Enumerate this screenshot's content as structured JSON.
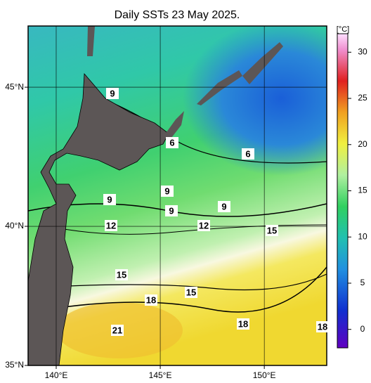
{
  "title": "Daily SSTs 23 May 2025.",
  "map": {
    "xlim": [
      138.65,
      153
    ],
    "ylim": [
      35,
      47.2
    ],
    "xticks": [
      {
        "value": 140,
        "label": "140°E"
      },
      {
        "value": 145,
        "label": "145°E"
      },
      {
        "value": 150,
        "label": "150°E"
      }
    ],
    "yticks": [
      {
        "value": 35,
        "label": "35°N"
      },
      {
        "value": 40,
        "label": "40°N"
      },
      {
        "value": 45,
        "label": "45°N"
      }
    ],
    "contour_labels": [
      "9",
      "6",
      "6",
      "9",
      "9",
      "9",
      "9",
      "12",
      "12",
      "15",
      "15",
      "15",
      "18",
      "18",
      "21",
      "18"
    ]
  },
  "colorbar": {
    "unit": "[°C]",
    "lim": [
      -2,
      32
    ],
    "ticks": [
      0,
      5,
      10,
      15,
      20,
      25,
      30
    ]
  }
}
